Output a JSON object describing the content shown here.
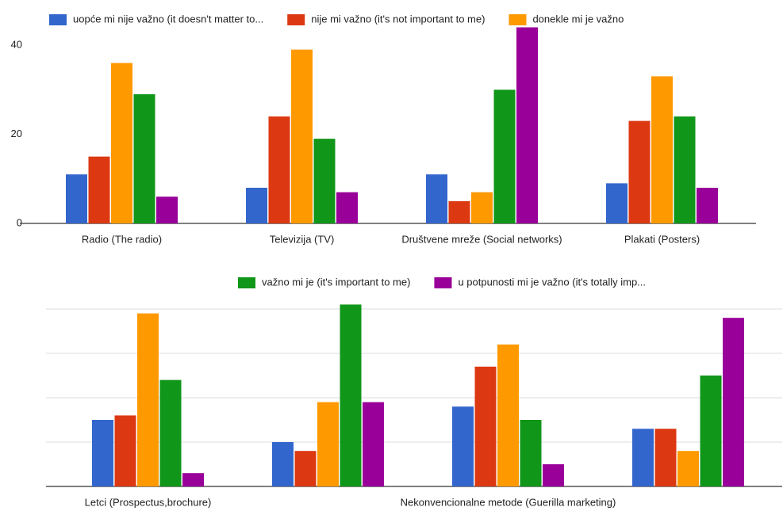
{
  "chart_data": [
    {
      "type": "bar",
      "categories": [
        "Radio (The radio)",
        "Televizija (TV)",
        "Društvene mreže (Social networks)",
        "Plakati (Posters)"
      ],
      "series": [
        {
          "name": "uopće mi nije važno (it doesn't matter to...",
          "color": "#3366cc",
          "values": [
            11,
            8,
            11,
            9
          ]
        },
        {
          "name": "nije mi važno (it's not important to me)",
          "color": "#dc3912",
          "values": [
            15,
            24,
            5,
            23
          ]
        },
        {
          "name": "donekle mi je važno",
          "color": "#ff9900",
          "values": [
            36,
            39,
            7,
            33
          ]
        },
        {
          "color": "#109618",
          "values": [
            29,
            19,
            30,
            24
          ]
        },
        {
          "color": "#990099",
          "values": [
            6,
            7,
            44,
            8
          ]
        }
      ],
      "ylim": [
        0,
        45
      ],
      "yticks": [
        0,
        20,
        40
      ],
      "grid": false,
      "show_tick_labels": true
    },
    {
      "type": "bar",
      "categories": [
        "Letci (Prospectus,brochure)",
        null,
        "Nekonvencionalne metode (Guerilla marketing)",
        null
      ],
      "series": [
        {
          "color": "#3366cc",
          "values": [
            15,
            10,
            18,
            13
          ]
        },
        {
          "color": "#dc3912",
          "values": [
            16,
            8,
            27,
            13
          ]
        },
        {
          "color": "#ff9900",
          "values": [
            39,
            19,
            32,
            8
          ]
        },
        {
          "name": "važno mi je (it's important to me)",
          "color": "#109618",
          "values": [
            24,
            41,
            15,
            25
          ]
        },
        {
          "name": "u potpunosti mi je važno (it's totally imp...",
          "color": "#990099",
          "values": [
            3,
            19,
            5,
            38
          ]
        }
      ],
      "ylim": [
        0,
        45
      ],
      "yticks": [
        0,
        10,
        20,
        30,
        40
      ],
      "grid": true,
      "show_tick_labels": false
    }
  ]
}
